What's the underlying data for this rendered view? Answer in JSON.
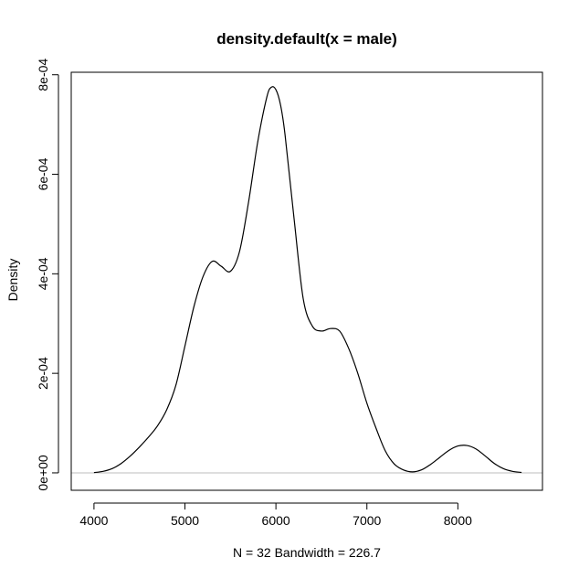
{
  "chart_data": {
    "type": "line",
    "title": "density.default(x = male)",
    "xlabel": "N = 32   Bandwidth = 226.7",
    "ylabel": "Density",
    "xlim": [
      3750,
      8930
    ],
    "ylim": [
      -3.5e-05,
      0.000805
    ],
    "x_ticks": [
      4000,
      5000,
      6000,
      7000,
      8000
    ],
    "x_tick_labels": [
      "4000",
      "5000",
      "6000",
      "7000",
      "8000"
    ],
    "y_ticks": [
      0,
      0.0002,
      0.0004,
      0.0006,
      0.0008
    ],
    "y_tick_labels": [
      "0e+00",
      "2e-04",
      "4e-04",
      "6e-04",
      "8e-04"
    ],
    "baseline": 0,
    "grid": false,
    "legend": "none",
    "colors": {
      "line": "#000000",
      "baseline": "#bebebe"
    },
    "series": [
      {
        "x": [
          4000,
          4100,
          4200,
          4300,
          4400,
          4500,
          4600,
          4700,
          4800,
          4900,
          5000,
          5100,
          5200,
          5300,
          5400,
          5500,
          5600,
          5700,
          5800,
          5900,
          5950,
          6000,
          6050,
          6100,
          6200,
          6300,
          6400,
          6500,
          6600,
          6700,
          6800,
          6900,
          7000,
          7100,
          7200,
          7300,
          7400,
          7500,
          7600,
          7700,
          7800,
          7900,
          8000,
          8100,
          8200,
          8300,
          8400,
          8500,
          8600,
          8700
        ],
        "values": [
          5e-07,
          3e-06,
          8.5e-06,
          1.9e-05,
          3.4e-05,
          5.2e-05,
          7.2e-05,
          9.5e-05,
          0.000127,
          0.000176,
          0.000255,
          0.000335,
          0.000395,
          0.000425,
          0.000415,
          0.000405,
          0.000445,
          0.000545,
          0.000665,
          0.000755,
          0.000775,
          0.00077,
          0.00074,
          0.00068,
          0.00051,
          0.00035,
          0.000295,
          0.000285,
          0.00029,
          0.000285,
          0.00025,
          0.0002,
          0.00014,
          9e-05,
          4.5e-05,
          1.8e-05,
          6e-06,
          2e-06,
          6e-06,
          1.7e-05,
          3.1e-05,
          4.5e-05,
          5.4e-05,
          5.5e-05,
          4.8e-05,
          3.4e-05,
          1.9e-05,
          8.5e-06,
          3e-06,
          8e-07
        ]
      }
    ]
  }
}
